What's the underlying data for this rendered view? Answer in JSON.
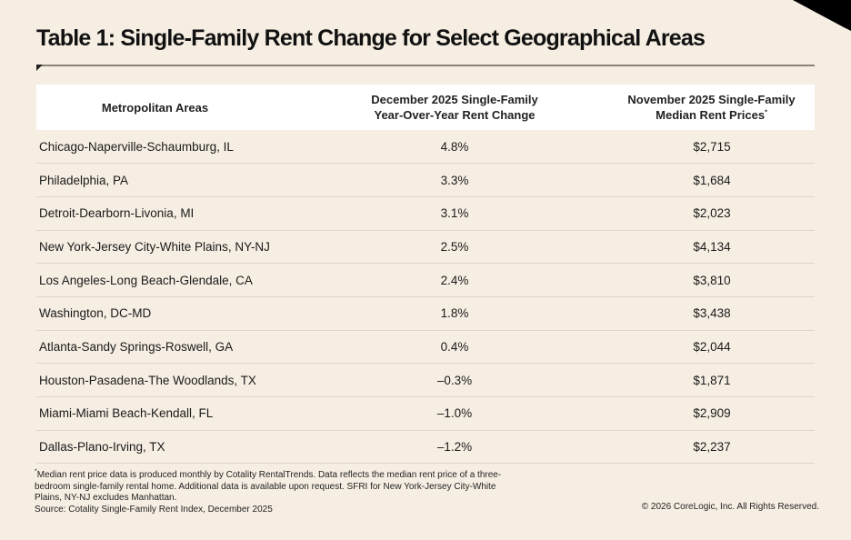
{
  "title": "Table 1: Single-Family Rent Change for Select Geographical Areas",
  "columns": {
    "area": "Metropolitan Areas",
    "change_line1": "December 2025 Single-Family",
    "change_line2": "Year-Over-Year Rent Change",
    "price_line1": "November 2025 Single-Family",
    "price_line2": "Median Rent Prices",
    "price_mark": "*"
  },
  "rows": [
    {
      "area": "Chicago-Naperville-Schaumburg, IL",
      "change": "4.8%",
      "price": "$2,715"
    },
    {
      "area": "Philadelphia, PA",
      "change": "3.3%",
      "price": "$1,684"
    },
    {
      "area": "Detroit-Dearborn-Livonia, MI",
      "change": "3.1%",
      "price": "$2,023"
    },
    {
      "area": "New York-Jersey City-White Plains, NY-NJ",
      "change": "2.5%",
      "price": "$4,134"
    },
    {
      "area": "Los Angeles-Long Beach-Glendale, CA",
      "change": "2.4%",
      "price": "$3,810"
    },
    {
      "area": "Washington, DC-MD",
      "change": "1.8%",
      "price": "$3,438"
    },
    {
      "area": "Atlanta-Sandy Springs-Roswell, GA",
      "change": "0.4%",
      "price": "$2,044"
    },
    {
      "area": "Houston-Pasadena-The Woodlands, TX",
      "change": "–0.3%",
      "price": "$1,871"
    },
    {
      "area": "Miami-Miami Beach-Kendall, FL",
      "change": "–1.0%",
      "price": "$2,909"
    },
    {
      "area": "Dallas-Plano-Irving, TX",
      "change": "–1.2%",
      "price": "$2,237"
    }
  ],
  "footnote": {
    "mark": "*",
    "text": "Median rent price data is produced monthly by Cotality RentalTrends. Data reflects the median rent price of a three-bedroom single-family rental home. Additional data is available upon request. SFRI for New York-Jersey City-White Plains, NY-NJ excludes Manhattan.",
    "source": "Source: Cotality Single-Family Rent Index, December 2025"
  },
  "copyright": "© 2026 CoreLogic, Inc. All Rights Reserved."
}
